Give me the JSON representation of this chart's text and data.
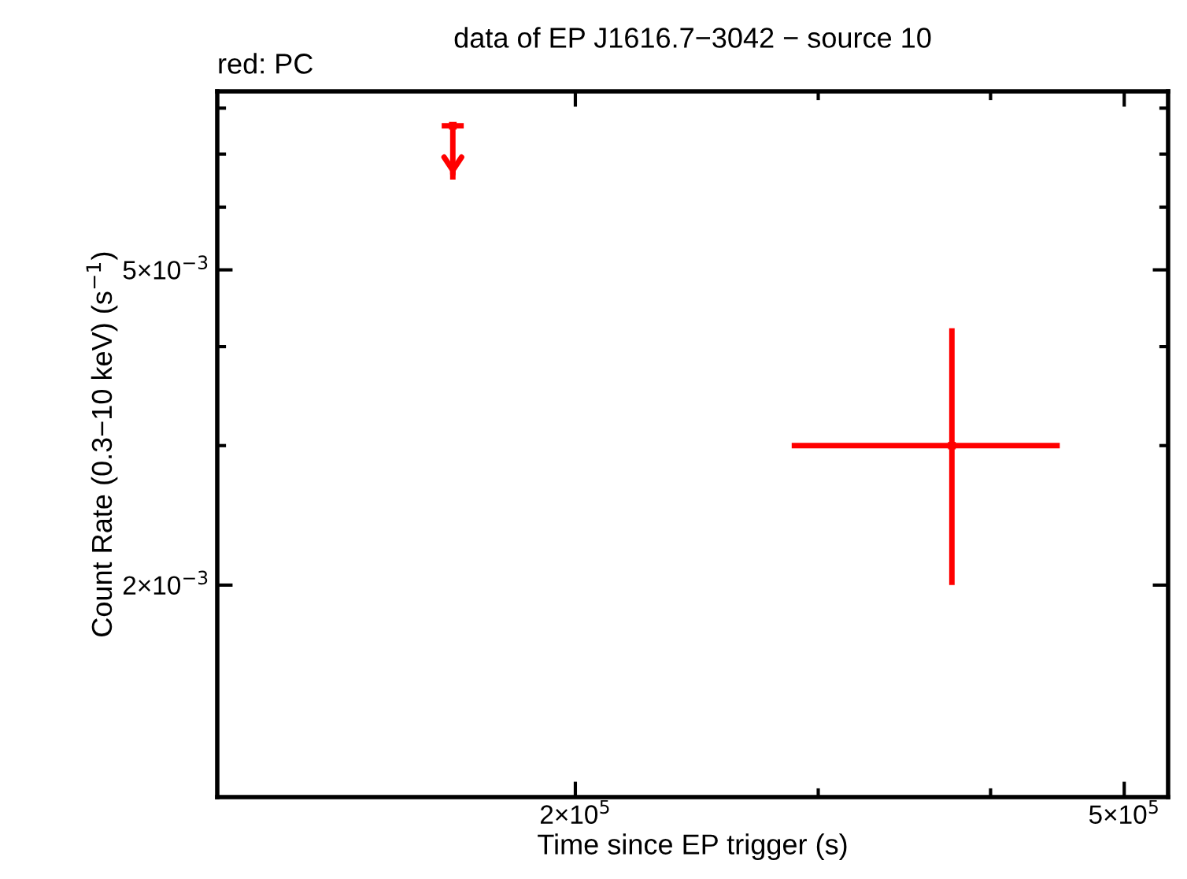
{
  "chart_data": {
    "type": "scatter",
    "title": "data of EP J1616.7−3042 − source 10",
    "xlabel": "Time since EP trigger (s)",
    "ylabel": "Count Rate (0.3−10 keV) (s$^{−1}$)",
    "annotations": [
      "red: PC"
    ],
    "log": "xy",
    "grid": false,
    "legend": false,
    "xlim": [
      110000,
      538000
    ],
    "ylim": [
      0.00108,
      0.0084
    ],
    "xticks": [
      {
        "value": 200000,
        "label": "2×10$^{5}$"
      },
      {
        "value": 500000,
        "label": "5×10$^{5}$"
      }
    ],
    "yticks": [
      {
        "value": 0.002,
        "label": "2×10$^{−3}$"
      },
      {
        "value": 0.005,
        "label": "5×10$^{−3}$"
      }
    ],
    "series": [
      {
        "color": "#ff0000",
        "x": [
          163000
        ],
        "values": [
          0.0076
        ],
        "errors": [
          [
            0.0065,
            0.0076
          ]
        ],
        "xerrors": [
          [
            160000,
            166000
          ]
        ]
      },
      {
        "color": "#ff0000",
        "x": [
          375000
        ],
        "values": [
          0.003
        ],
        "errors": [
          [
            0.002,
            0.00422
          ]
        ],
        "xerrors": [
          [
            287000,
            449000
          ]
        ]
      }
    ]
  }
}
